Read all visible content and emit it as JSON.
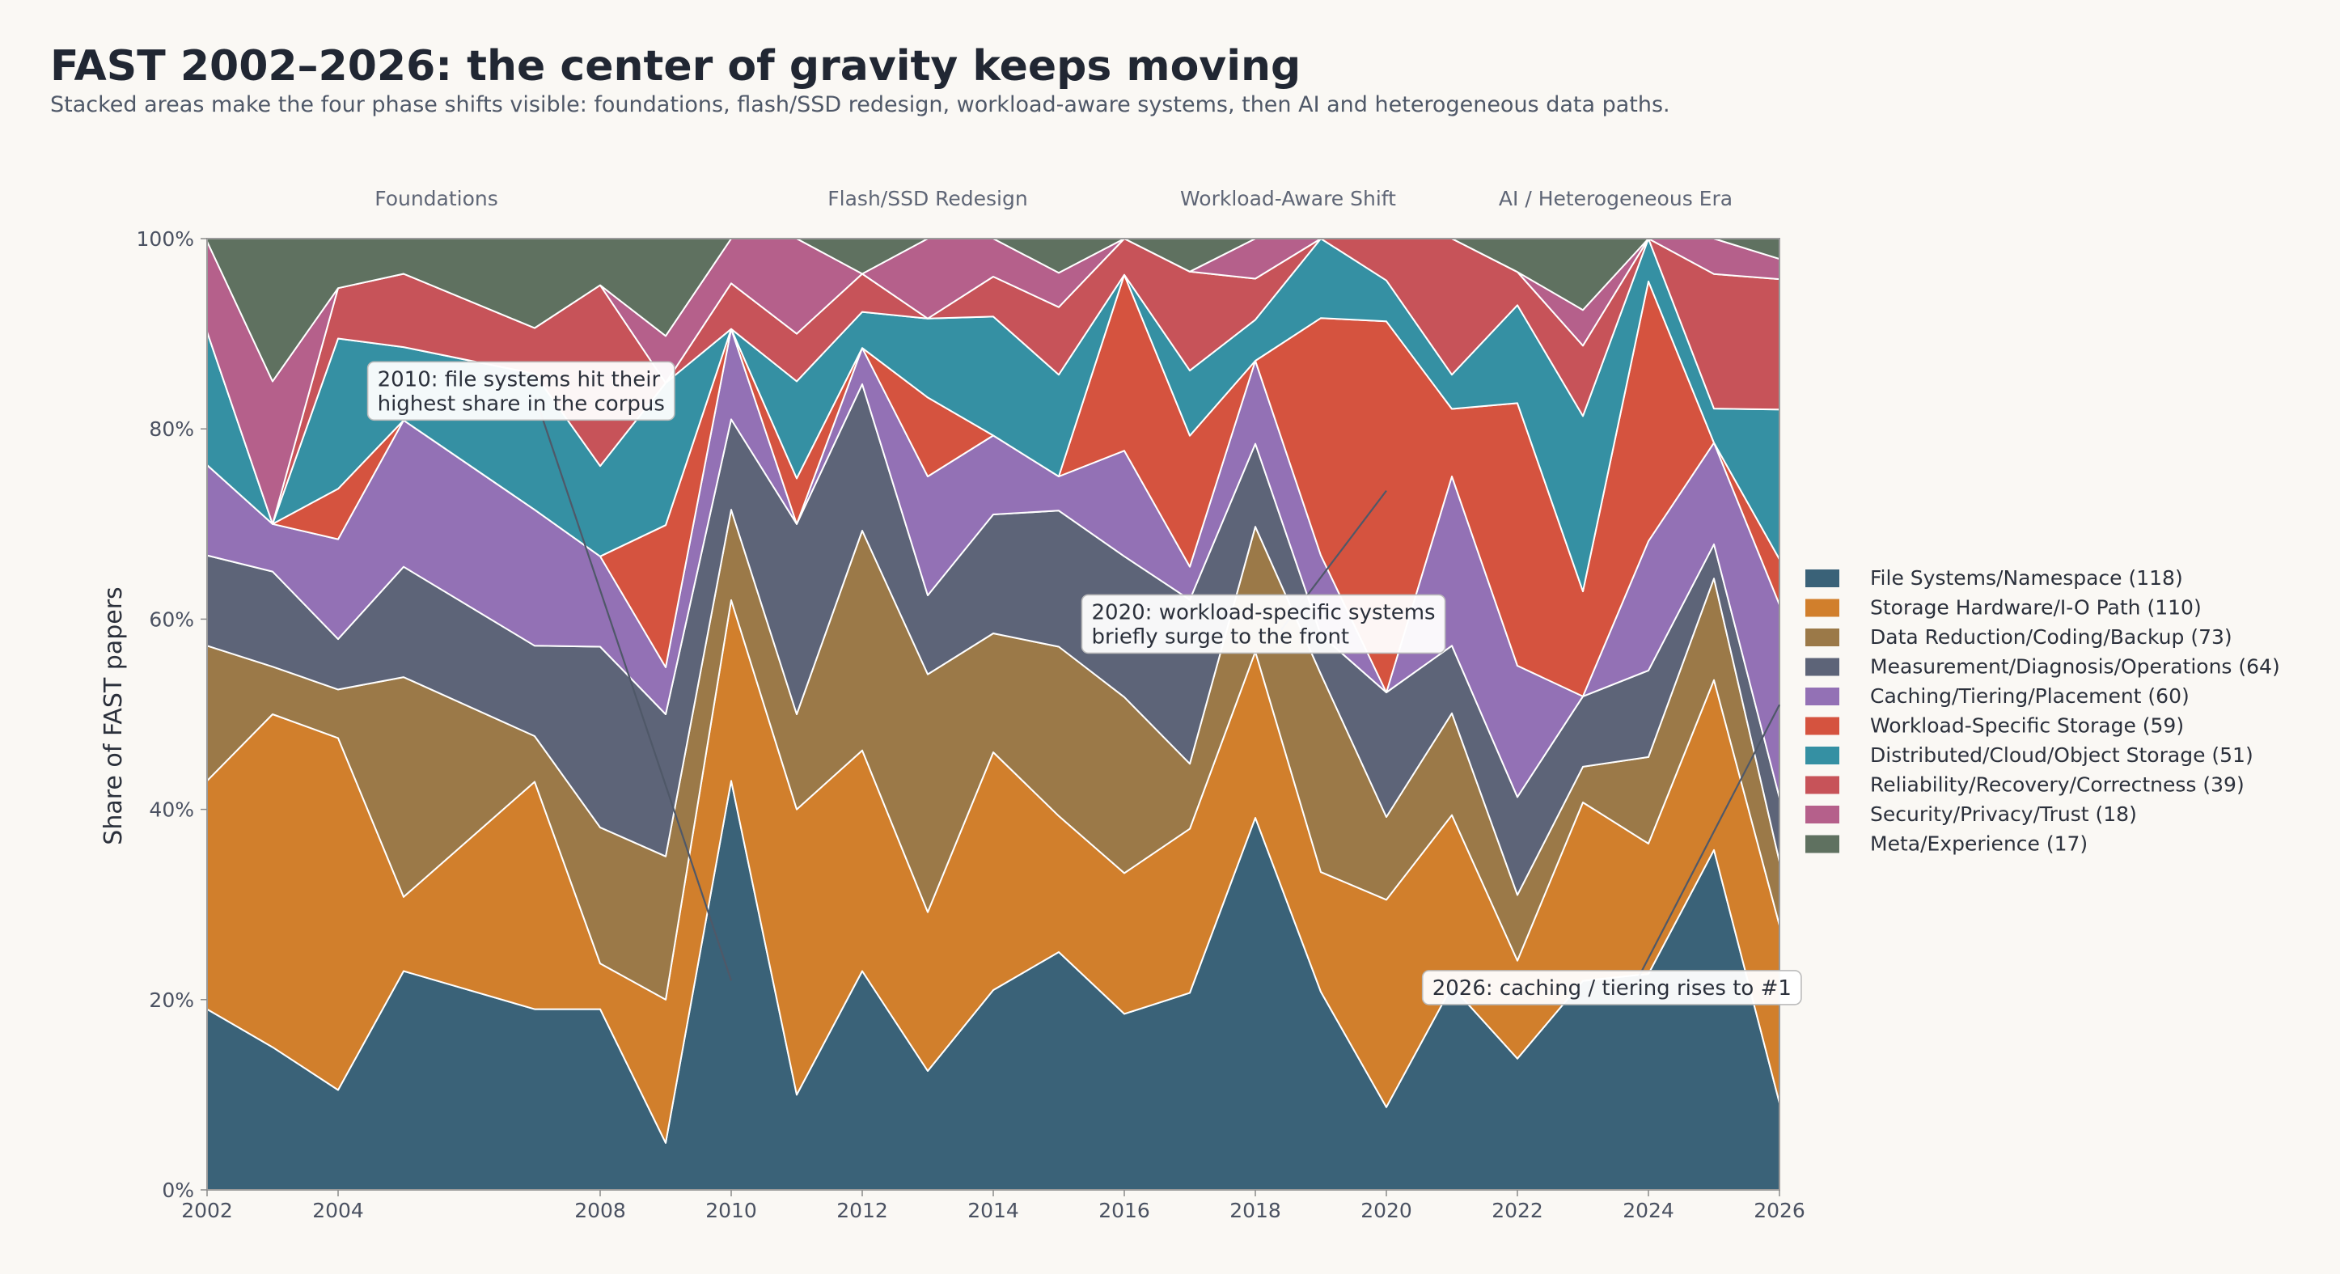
{
  "chart_data": {
    "type": "area",
    "stacked": "percent",
    "title": "FAST 2002–2026: the center of gravity keeps moving",
    "subtitle": "Stacked areas make the four phase shifts visible: foundations, flash/SSD redesign, workload-aware systems, then AI and heterogeneous data paths.",
    "ylabel": "Share of FAST papers",
    "xlabel": "",
    "ylim": [
      0,
      100
    ],
    "x": [
      2002,
      2003,
      2004,
      2005,
      2007,
      2008,
      2009,
      2010,
      2011,
      2012,
      2013,
      2014,
      2015,
      2016,
      2017,
      2018,
      2019,
      2020,
      2021,
      2022,
      2023,
      2024,
      2025,
      2026
    ],
    "x_ticks": [
      "2002",
      "2004",
      "2008",
      "2010",
      "2012",
      "2014",
      "2016",
      "2018",
      "2020",
      "2022",
      "2024",
      "2026"
    ],
    "y_ticks": [
      "0%",
      "20%",
      "40%",
      "60%",
      "80%",
      "100%"
    ],
    "eras": [
      {
        "label": "Foundations",
        "center_year": 2005.5
      },
      {
        "label": "Flash/SSD Redesign",
        "center_year": 2013
      },
      {
        "label": "Workload-Aware Shift",
        "center_year": 2018.5
      },
      {
        "label": "AI / Heterogeneous Era",
        "center_year": 2023.5
      }
    ],
    "series": [
      {
        "name": "File Systems/Namespace (118)",
        "color": "#3a6278",
        "values": [
          19,
          15,
          10.5,
          23,
          19,
          19,
          4.3,
          43,
          10,
          23,
          12.5,
          21,
          25,
          18.5,
          21.5,
          39,
          19.2,
          8.7,
          21.4,
          13.8,
          20.5,
          22.7,
          27.8,
          9
        ]
      },
      {
        "name": "Storage Hardware/I-O Path (110)",
        "color": "#d17f2c",
        "values": [
          24,
          35,
          37,
          7.8,
          23.9,
          4.8,
          13.1,
          19,
          30,
          23.2,
          16.7,
          25,
          14.3,
          14.8,
          17.9,
          17.4,
          11.6,
          21.8,
          18,
          10.3,
          17.5,
          13.7,
          13.9,
          18.4
        ]
      },
      {
        "name": "Data Reduction/Coding/Backup (73)",
        "color": "#9b7948",
        "values": [
          14.2,
          5,
          5.1,
          23.1,
          4.8,
          14.3,
          13.1,
          9.5,
          10,
          23.1,
          25,
          12.5,
          17.8,
          18.5,
          7.1,
          13.1,
          19.2,
          8.7,
          10.7,
          6.9,
          3.5,
          9.1,
          8.3,
          6.6
        ]
      },
      {
        "name": "Measurement/Diagnosis/Operations (64)",
        "color": "#5d6478",
        "values": [
          9.5,
          10,
          5.3,
          11.6,
          9.5,
          19,
          13,
          9.5,
          20,
          15.4,
          8.3,
          12.5,
          14.3,
          14.8,
          17.9,
          8.7,
          3.8,
          13.1,
          7.1,
          10.3,
          6.9,
          9.1,
          2.8,
          6.6
        ]
      },
      {
        "name": "Caching/Tiering/Placement (60)",
        "color": "#9371b5",
        "values": [
          9.5,
          5,
          10.5,
          15.4,
          14.3,
          9.5,
          4.3,
          9.5,
          0,
          3.8,
          12.5,
          8.3,
          3.6,
          11.1,
          3.6,
          8.7,
          7.7,
          0,
          17.8,
          13.8,
          0,
          13.6,
          8.3,
          20
        ]
      },
      {
        "name": "Workload-Specific Storage (59)",
        "color": "#d5533f",
        "values": [
          0,
          0,
          5.3,
          0,
          0,
          0,
          13,
          0,
          4.8,
          0,
          8.3,
          0,
          0,
          18.5,
          14.3,
          0,
          23,
          39,
          7.1,
          27.6,
          10.3,
          27.3,
          0,
          4.7
        ]
      },
      {
        "name": "Distributed/Cloud/Object Storage (51)",
        "color": "#3590a3",
        "values": [
          14,
          0,
          15.8,
          7.7,
          14.3,
          9.5,
          13,
          0,
          10.2,
          3.8,
          8.3,
          12.5,
          10.7,
          0,
          7.1,
          4.3,
          7.7,
          4.3,
          3.6,
          10.3,
          17.2,
          4.5,
          2.8,
          15.5
        ]
      },
      {
        "name": "Reliability/Recovery/Correctness (39)",
        "color": "#c75359",
        "values": [
          0,
          0,
          5.3,
          7.7,
          4.8,
          19,
          0,
          4.8,
          5,
          4,
          0,
          4.2,
          7.1,
          3.8,
          10.8,
          4.3,
          0,
          4.4,
          14.3,
          3.5,
          6.9,
          0,
          11,
          13.5
        ]
      },
      {
        "name": "Security/Privacy/Trust (18)",
        "color": "#b5608b",
        "values": [
          9.5,
          15,
          0,
          0,
          0,
          0,
          4.3,
          4.7,
          10,
          0,
          8.4,
          4,
          3.6,
          0,
          0,
          4.2,
          0,
          0,
          0,
          0,
          3.5,
          0,
          2.9,
          2.1
        ]
      },
      {
        "name": "Meta/Experience (17)",
        "color": "#5f7160",
        "values": [
          0.3,
          15,
          5.2,
          3.7,
          9.4,
          4.9,
          8.9,
          0,
          0,
          3.7,
          0,
          0,
          3.6,
          0,
          3.6,
          0,
          0,
          0,
          0,
          3.5,
          7,
          0,
          0,
          2.1
        ]
      }
    ],
    "annotations": [
      {
        "label": "2010: file systems hit their",
        "label2": "highest share in the corpus",
        "point": [
          2010,
          22
        ],
        "text_at": [
          2004.6,
          84.5
        ]
      },
      {
        "label": "2020: workload-specific systems",
        "label2": "briefly surge to the front",
        "point": [
          2020,
          73.5
        ],
        "text_at": [
          2015.5,
          60
        ]
      },
      {
        "label": "2026: caching / tiering rises to #1",
        "label2": "",
        "point": [
          2026,
          51
        ],
        "text_at": [
          2020.7,
          20.5
        ]
      }
    ],
    "legend_position": "right"
  }
}
